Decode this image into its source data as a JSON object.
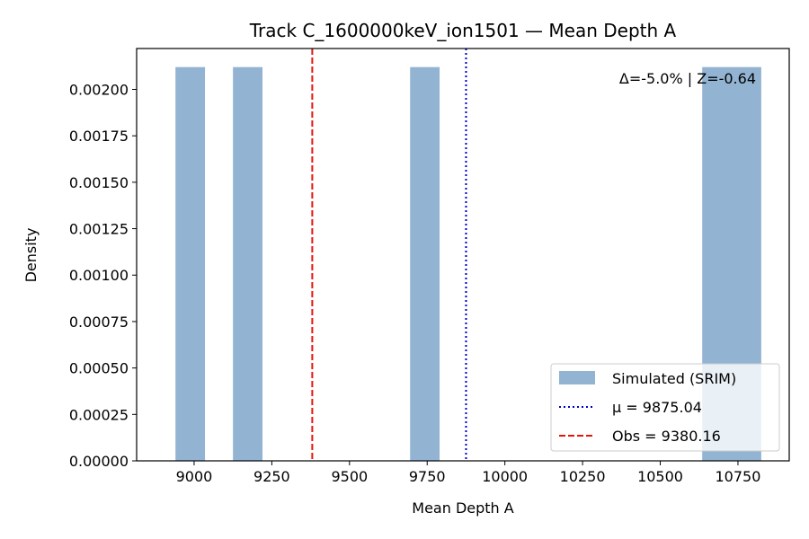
{
  "chart_data": {
    "type": "bar",
    "title": "Track C_1600000keV_ion1501 — Mean Depth A",
    "xlabel": "Mean Depth A",
    "ylabel": "Density",
    "xlim": [
      8815,
      10915
    ],
    "ylim": [
      0,
      0.00222
    ],
    "xticks": [
      9000,
      9250,
      9500,
      9750,
      10000,
      10250,
      10500,
      10750
    ],
    "xtick_labels": [
      "9000",
      "9250",
      "9500",
      "9750",
      "10000",
      "10250",
      "10500",
      "10750"
    ],
    "yticks": [
      0,
      0.00025,
      0.0005,
      0.00075,
      0.001,
      0.00125,
      0.0015,
      0.00175,
      0.002
    ],
    "ytick_labels": [
      "0.00000",
      "0.00025",
      "0.00050",
      "0.00075",
      "0.00100",
      "0.00125",
      "0.00150",
      "0.00175",
      "0.00200"
    ],
    "bars": [
      {
        "x0": 8940,
        "x1": 9035,
        "value": 0.00212
      },
      {
        "x0": 9125,
        "x1": 9220,
        "value": 0.00212
      },
      {
        "x0": 9695,
        "x1": 9790,
        "value": 0.00212
      },
      {
        "x0": 10635,
        "x1": 10825,
        "value": 0.00212
      }
    ],
    "bar_color": "#92b4d2",
    "series": [
      {
        "name": "Simulated (SRIM)",
        "kind": "bars",
        "color": "#92b4d2"
      },
      {
        "name": "μ = 9875.04",
        "kind": "vline",
        "x": 9875.04,
        "color": "#0000cc",
        "style": "dotted"
      },
      {
        "name": "Obs = 9380.16",
        "kind": "vline",
        "x": 9380.16,
        "color": "#e8140c",
        "style": "dashed"
      }
    ],
    "annotation": "Δ=-5.0% | Z=-0.64",
    "legend_position": "lower-right",
    "grid": false
  }
}
